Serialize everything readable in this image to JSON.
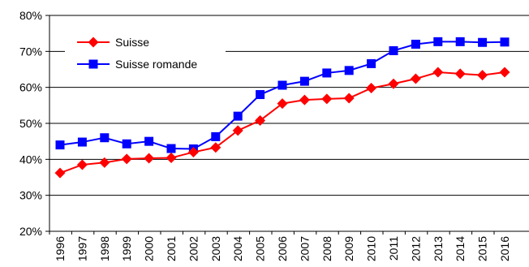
{
  "chart_data": {
    "type": "line",
    "title": "",
    "xlabel": "",
    "ylabel": "",
    "x": [
      "1996",
      "1997",
      "1998",
      "1999",
      "2000",
      "2001",
      "2002",
      "2003",
      "2004",
      "2005",
      "2006",
      "2007",
      "2008",
      "2009",
      "2010",
      "2011",
      "2012",
      "2013",
      "2014",
      "2015",
      "2016"
    ],
    "ylim": [
      20,
      80
    ],
    "yticks": [
      20,
      30,
      40,
      50,
      60,
      70,
      80
    ],
    "ytick_labels": [
      "20%",
      "30%",
      "40%",
      "50%",
      "60%",
      "70%",
      "80%"
    ],
    "grid": true,
    "legend_position": "top-left",
    "series": [
      {
        "name": "Suisse",
        "color": "#ff0000",
        "marker": "diamond",
        "values": [
          36.2,
          38.5,
          39.1,
          40.1,
          40.3,
          40.4,
          42.0,
          43.3,
          48.0,
          50.8,
          55.5,
          56.5,
          56.8,
          57.0,
          59.8,
          61.0,
          62.4,
          64.2,
          63.8,
          63.4,
          64.2
        ]
      },
      {
        "name": "Suisse romande",
        "color": "#0000ff",
        "marker": "square",
        "values": [
          44.0,
          44.8,
          46.0,
          44.3,
          45.0,
          43.0,
          42.9,
          46.3,
          52.0,
          58.0,
          60.6,
          61.7,
          64.0,
          64.7,
          66.6,
          70.2,
          72.0,
          72.7,
          72.7,
          72.5,
          72.6
        ]
      }
    ]
  }
}
